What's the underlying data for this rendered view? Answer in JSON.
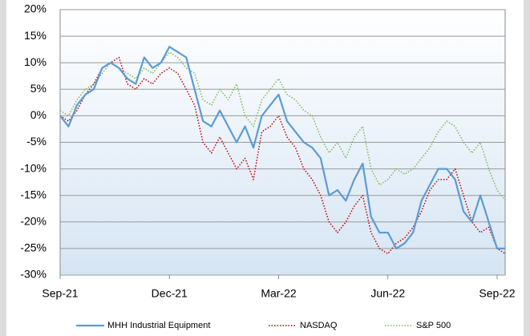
{
  "chart_data": {
    "type": "line",
    "categories": [
      "Sep-21",
      null,
      null,
      null,
      null,
      null,
      null,
      null,
      null,
      null,
      null,
      null,
      null,
      "Dec-21",
      null,
      null,
      null,
      null,
      null,
      null,
      null,
      null,
      null,
      null,
      null,
      null,
      "Mar-22",
      null,
      null,
      null,
      null,
      null,
      null,
      null,
      null,
      null,
      null,
      null,
      null,
      "Jun-22",
      null,
      null,
      null,
      null,
      null,
      null,
      null,
      null,
      null,
      null,
      null,
      null,
      "Sep-22",
      null
    ],
    "series": [
      {
        "name": "MHH Industrial Equipment",
        "color": "#5b9bd5",
        "style": "solid",
        "values": [
          0,
          -2,
          2,
          4,
          5,
          9,
          10,
          9,
          7,
          6,
          11,
          9,
          10,
          13,
          12,
          11,
          5,
          -1,
          -2,
          1,
          -2,
          -5,
          -2,
          -6,
          0,
          2,
          4,
          -1,
          -3,
          -5,
          -6,
          -8,
          -15,
          -14,
          -16,
          -12,
          -9,
          -19,
          -22,
          -22,
          -25,
          -24,
          -22,
          -16,
          -13,
          -10,
          -10,
          -12,
          -18,
          -20,
          -15,
          -20,
          -25,
          -25
        ]
      },
      {
        "name": "NASDAQ",
        "color": "#c00000",
        "style": "dotted",
        "values": [
          0,
          -1,
          1,
          4,
          6,
          9,
          10,
          11,
          6,
          5,
          7,
          6,
          8,
          9,
          8,
          5,
          2,
          -5,
          -7,
          -4,
          -7,
          -10,
          -8,
          -12,
          -3,
          -2,
          0,
          -4,
          -6,
          -10,
          -12,
          -15,
          -20,
          -22,
          -20,
          -17,
          -15,
          -22,
          -25,
          -26,
          -24,
          -23,
          -21,
          -18,
          -14,
          -12,
          -12,
          -10,
          -15,
          -20,
          -22,
          -21,
          -25,
          -26
        ]
      },
      {
        "name": "S&P 500",
        "color": "#7fba4f",
        "style": "dotted",
        "values": [
          1,
          0,
          3,
          5,
          6,
          8,
          10,
          9,
          8,
          7,
          9,
          8,
          10,
          12,
          11,
          9,
          8,
          3,
          2,
          5,
          3,
          6,
          0,
          -2,
          3,
          5,
          7,
          4,
          3,
          1,
          0,
          -4,
          -7,
          -5,
          -8,
          -4,
          -2,
          -10,
          -13,
          -12,
          -10,
          -11,
          -10,
          -8,
          -6,
          -3,
          -1,
          -2,
          -5,
          -7,
          -5,
          -10,
          -14,
          -16
        ]
      }
    ],
    "ylim": [
      -30,
      20
    ],
    "yticks": [
      {
        "value": -30,
        "label": "-30%"
      },
      {
        "value": -25,
        "label": "-25%"
      },
      {
        "value": -20,
        "label": "-20%"
      },
      {
        "value": -15,
        "label": "-15%"
      },
      {
        "value": -10,
        "label": "-10%"
      },
      {
        "value": -5,
        "label": "-5%"
      },
      {
        "value": 0,
        "label": "0%"
      },
      {
        "value": 5,
        "label": "5%"
      },
      {
        "value": 10,
        "label": "10%"
      },
      {
        "value": 15,
        "label": "15%"
      },
      {
        "value": 20,
        "label": "20%"
      }
    ],
    "grid": true,
    "legend": "bottom"
  }
}
